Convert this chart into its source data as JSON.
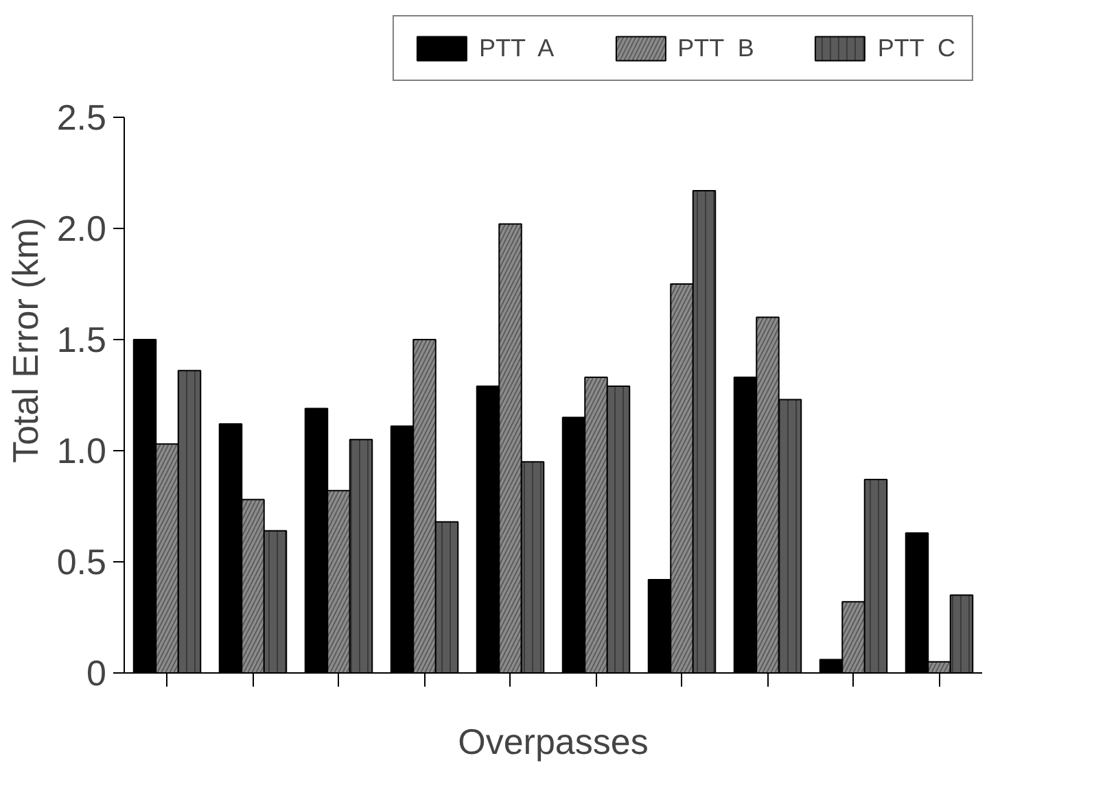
{
  "chart_data": {
    "type": "bar",
    "xlabel": "Overpasses",
    "ylabel": "Total Error (km)",
    "categories": [
      null,
      null,
      null,
      null,
      null,
      null,
      null,
      null,
      null,
      null
    ],
    "series": [
      {
        "name": "PTT  A",
        "color": "#000000",
        "values": [
          1.5,
          1.12,
          1.19,
          1.11,
          1.29,
          1.15,
          0.42,
          1.33,
          0.06,
          0.63
        ]
      },
      {
        "name": "PTT  B",
        "color": "#8c8c8c",
        "values": [
          1.03,
          0.78,
          0.82,
          1.5,
          2.02,
          1.33,
          1.75,
          1.6,
          0.32,
          0.05
        ]
      },
      {
        "name": "PTT  C",
        "color": "#5a5a5a",
        "values": [
          1.36,
          0.64,
          1.05,
          0.68,
          0.95,
          1.29,
          2.17,
          1.23,
          0.87,
          0.35
        ]
      }
    ],
    "ylim": [
      0,
      2.5
    ],
    "yticks": [
      0,
      0.5,
      {
        "value": 1,
        "label": "1.0"
      },
      1.5,
      {
        "value": 2,
        "label": "2.0"
      },
      2.5
    ],
    "tick_labels": "y",
    "grid": false,
    "legend": "top"
  }
}
